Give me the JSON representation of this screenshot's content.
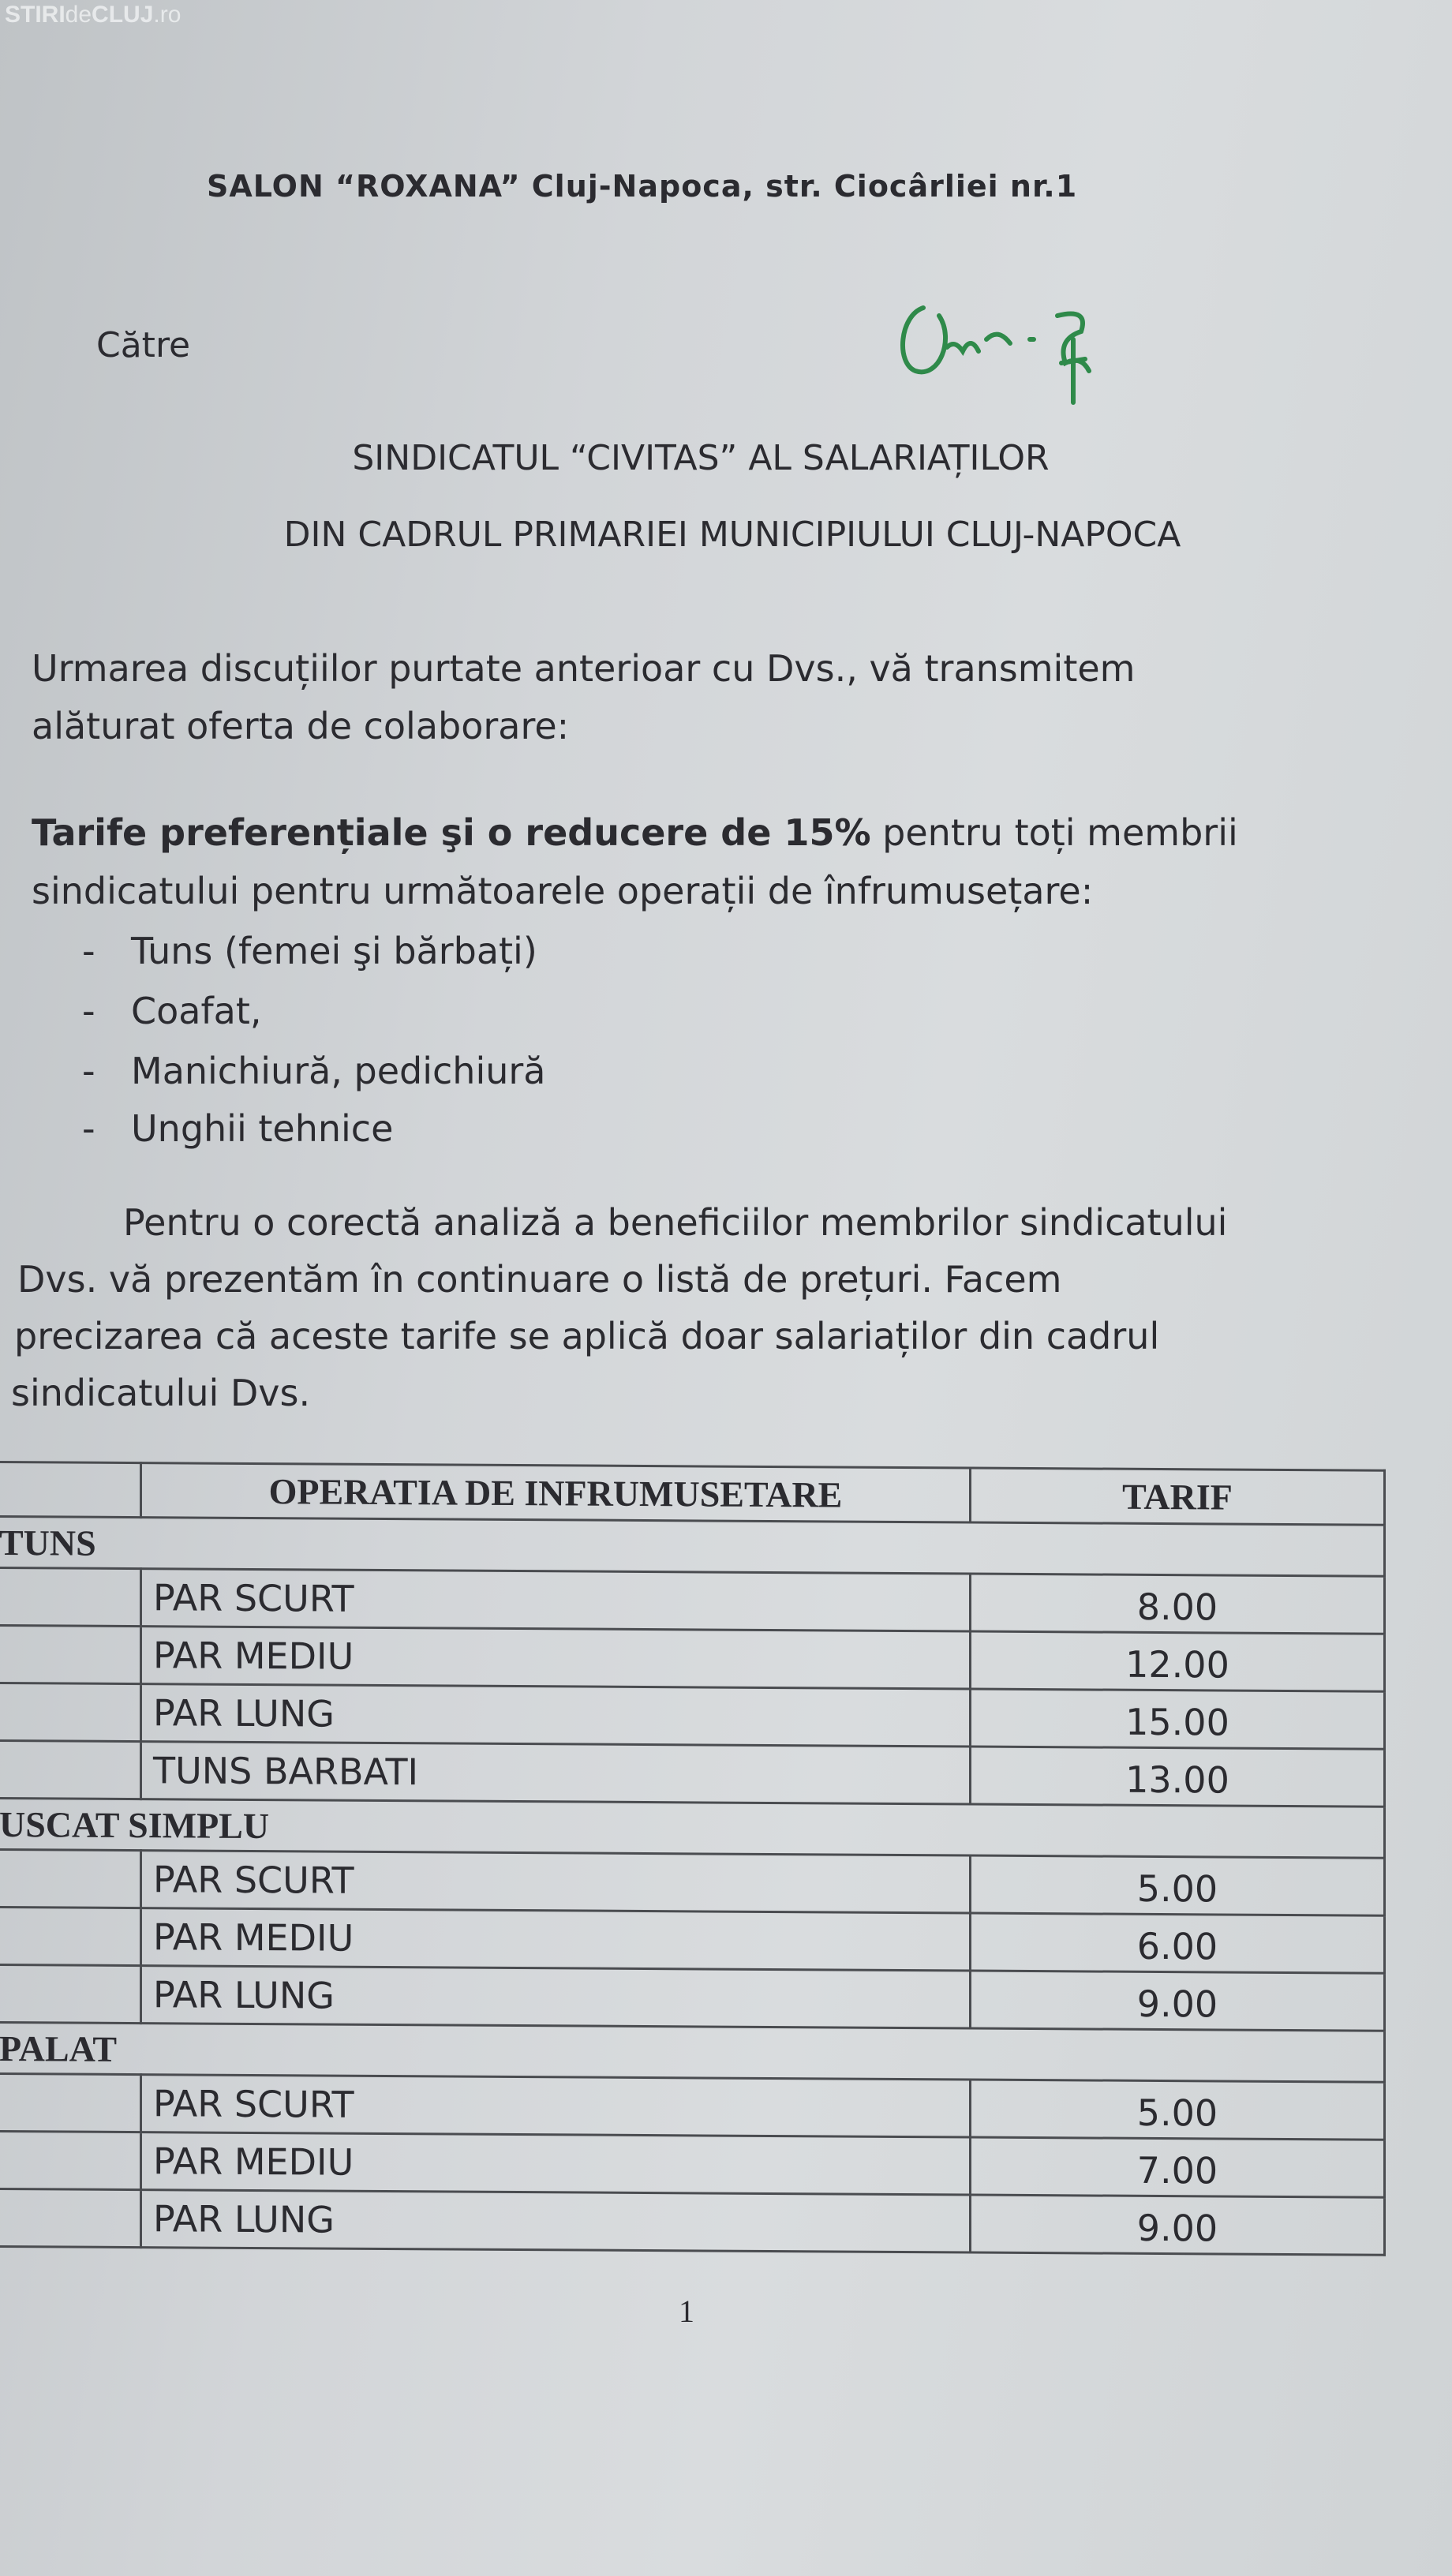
{
  "watermark": {
    "strong1": "STIRI",
    "thin": "de",
    "strong2": "CLUJ",
    "suffix": ".ro"
  },
  "header": "SALON “ROXANA”   Cluj-Napoca, str. Ciocârliei nr.1",
  "recipient_label": "Către",
  "recipient": [
    "SINDICATUL “CIVITAS” AL SALARIAȚILOR",
    "DIN CADRUL PRIMARIEI MUNICIPIULUI CLUJ-NAPOCA"
  ],
  "intro": [
    "Urmarea discuțiilor purtate anterioar cu Dvs., vă transmitem",
    "alăturat oferta de colaborare:"
  ],
  "offer": {
    "bold": "Tarife preferențiale şi o reducere de 15%",
    "rest": " pentru toți membrii",
    "line2": "sindicatului pentru următoarele operații de înfrumusețare:"
  },
  "services": [
    "Tuns (femei şi bărbați)",
    "Coafat,",
    "Manichiură, pedichiură",
    "Unghii tehnice"
  ],
  "note": [
    "Pentru o corectă analiză a beneficiilor membrilor sindicatului",
    "Dvs. vă prezentăm în continuare o listă de prețuri. Facem",
    "precizarea că aceste tarife se aplică doar salariaților din cadrul",
    "sindicatului Dvs."
  ],
  "table": {
    "headers": [
      "OPERATIA DE INFRUMUSETARE",
      "TARIF"
    ],
    "groups": [
      {
        "name": "TUNS",
        "rows": [
          [
            "PAR SCURT",
            "8.00"
          ],
          [
            "PAR MEDIU",
            "12.00"
          ],
          [
            "PAR LUNG",
            "15.00"
          ],
          [
            "TUNS BARBATI",
            "13.00"
          ]
        ]
      },
      {
        "name": "USCAT SIMPLU",
        "rows": [
          [
            "PAR SCURT",
            "5.00"
          ],
          [
            "PAR MEDIU",
            "6.00"
          ],
          [
            "PAR LUNG",
            "9.00"
          ]
        ]
      },
      {
        "name": "PALAT",
        "rows": [
          [
            "PAR SCURT",
            "5.00"
          ],
          [
            "PAR MEDIU",
            "7.00"
          ],
          [
            "PAR LUNG",
            "9.00"
          ]
        ]
      }
    ]
  },
  "page_number": "1",
  "colors": {
    "signature": "#2f8a4a",
    "text": "#2b2b30"
  }
}
